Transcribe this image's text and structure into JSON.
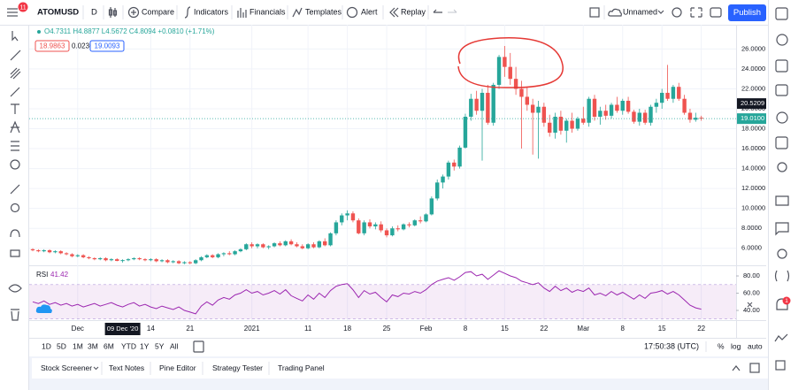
{
  "toolbar": {
    "symbol": "ATOMUSD",
    "interval": "D",
    "buttons": [
      "Compare",
      "Indicators",
      "Financials",
      "Templates",
      "Alert",
      "Replay"
    ],
    "layout_name": "Unnamed",
    "publish": "Publish",
    "notifications": "11"
  },
  "chart_data": {
    "type": "candlestick",
    "legend": "O4.7311 H4.8877 L4.5672 C4.8094 +0.0810 (+1.71%)",
    "bid": "18.9863",
    "spread": "0.0230",
    "ask": "19.0093",
    "colors": {
      "up": "#26a69a",
      "down": "#ef5350"
    },
    "candles": [
      [
        5.9,
        6.0,
        5.7,
        5.8
      ],
      [
        5.8,
        5.9,
        5.6,
        5.7
      ],
      [
        5.7,
        5.9,
        5.6,
        5.8
      ],
      [
        5.8,
        5.9,
        5.5,
        5.6
      ],
      [
        5.6,
        5.8,
        5.5,
        5.7
      ],
      [
        5.7,
        5.8,
        5.4,
        5.5
      ],
      [
        5.5,
        5.6,
        5.3,
        5.4
      ],
      [
        5.4,
        5.5,
        5.1,
        5.2
      ],
      [
        5.2,
        5.4,
        5.1,
        5.3
      ],
      [
        5.3,
        5.4,
        5.0,
        5.1
      ],
      [
        5.1,
        5.2,
        4.9,
        5.0
      ],
      [
        5.0,
        5.1,
        4.8,
        4.9
      ],
      [
        4.9,
        5.1,
        4.8,
        5.0
      ],
      [
        5.0,
        5.1,
        4.7,
        4.8
      ],
      [
        4.8,
        5.0,
        4.7,
        4.9
      ],
      [
        4.9,
        5.0,
        4.7,
        4.73
      ],
      [
        4.7311,
        4.8877,
        4.5672,
        4.8094
      ],
      [
        4.8,
        5.0,
        4.7,
        4.9
      ],
      [
        4.9,
        5.1,
        4.8,
        5.0
      ],
      [
        5.0,
        5.1,
        4.8,
        4.9
      ],
      [
        4.9,
        5.0,
        4.7,
        4.8
      ],
      [
        4.8,
        5.0,
        4.7,
        4.9
      ],
      [
        4.9,
        5.0,
        4.6,
        4.7
      ],
      [
        4.7,
        4.9,
        4.6,
        4.8
      ],
      [
        4.8,
        4.9,
        4.5,
        4.6
      ],
      [
        4.6,
        4.8,
        4.5,
        4.7
      ],
      [
        4.7,
        4.8,
        4.4,
        4.5
      ],
      [
        4.5,
        4.7,
        4.4,
        4.6
      ],
      [
        4.6,
        4.7,
        4.4,
        4.5
      ],
      [
        4.5,
        4.9,
        4.4,
        4.8
      ],
      [
        4.8,
        5.2,
        4.7,
        5.1
      ],
      [
        5.1,
        5.4,
        5.0,
        5.3
      ],
      [
        5.3,
        5.4,
        5.0,
        5.1
      ],
      [
        5.1,
        5.5,
        5.0,
        5.4
      ],
      [
        5.4,
        5.6,
        5.2,
        5.5
      ],
      [
        5.5,
        5.7,
        5.3,
        5.4
      ],
      [
        5.4,
        5.8,
        5.3,
        5.7
      ],
      [
        5.7,
        6.0,
        5.6,
        5.9
      ],
      [
        5.9,
        6.5,
        5.8,
        6.4
      ],
      [
        6.4,
        6.6,
        6.0,
        6.2
      ],
      [
        6.2,
        6.5,
        6.0,
        6.4
      ],
      [
        6.4,
        6.5,
        6.0,
        6.1
      ],
      [
        6.1,
        6.3,
        5.9,
        6.2
      ],
      [
        6.2,
        6.6,
        6.1,
        6.5
      ],
      [
        6.5,
        6.7,
        6.2,
        6.3
      ],
      [
        6.3,
        6.8,
        6.2,
        6.7
      ],
      [
        6.7,
        6.9,
        6.3,
        6.4
      ],
      [
        6.4,
        6.6,
        6.1,
        6.2
      ],
      [
        6.2,
        6.4,
        5.9,
        6.0
      ],
      [
        6.0,
        6.5,
        5.9,
        6.4
      ],
      [
        6.4,
        6.6,
        6.0,
        6.1
      ],
      [
        6.1,
        6.8,
        6.0,
        6.7
      ],
      [
        6.7,
        7.0,
        6.2,
        6.3
      ],
      [
        6.3,
        7.6,
        6.2,
        7.5
      ],
      [
        7.5,
        8.8,
        7.3,
        8.6
      ],
      [
        8.6,
        9.5,
        8.3,
        9.3
      ],
      [
        9.3,
        9.8,
        8.8,
        9.5
      ],
      [
        9.5,
        9.7,
        8.6,
        8.8
      ],
      [
        8.8,
        9.0,
        7.4,
        7.5
      ],
      [
        7.5,
        8.8,
        7.3,
        8.6
      ],
      [
        8.6,
        8.9,
        8.0,
        8.2
      ],
      [
        8.2,
        8.6,
        7.9,
        8.4
      ],
      [
        8.4,
        8.7,
        7.6,
        7.8
      ],
      [
        7.8,
        8.0,
        7.1,
        7.3
      ],
      [
        7.3,
        8.2,
        7.2,
        8.0
      ],
      [
        8.0,
        8.3,
        7.7,
        7.9
      ],
      [
        7.9,
        8.5,
        7.8,
        8.4
      ],
      [
        8.4,
        8.6,
        8.1,
        8.3
      ],
      [
        8.3,
        8.9,
        8.2,
        8.8
      ],
      [
        8.8,
        9.2,
        8.5,
        8.7
      ],
      [
        8.7,
        9.5,
        8.6,
        9.4
      ],
      [
        9.4,
        11.2,
        9.3,
        11.0
      ],
      [
        11.0,
        12.9,
        10.8,
        12.6
      ],
      [
        12.6,
        13.4,
        12.0,
        13.2
      ],
      [
        13.2,
        14.8,
        12.9,
        14.6
      ],
      [
        14.6,
        14.9,
        13.8,
        14.2
      ],
      [
        14.2,
        16.3,
        14.0,
        16.1
      ],
      [
        16.1,
        19.5,
        16.0,
        19.2
      ],
      [
        19.2,
        21.5,
        18.8,
        21.0
      ],
      [
        21.0,
        21.8,
        19.4,
        19.8
      ],
      [
        19.8,
        22.0,
        14.8,
        21.6
      ],
      [
        21.6,
        22.4,
        18.4,
        18.6
      ],
      [
        18.6,
        22.6,
        18.3,
        22.4
      ],
      [
        22.4,
        25.4,
        22.0,
        25.2
      ],
      [
        25.2,
        26.3,
        23.2,
        24.2
      ],
      [
        24.2,
        25.6,
        22.4,
        23.0
      ],
      [
        23.0,
        24.2,
        21.4,
        22.0
      ],
      [
        22.0,
        22.8,
        16.0,
        21.2
      ],
      [
        21.2,
        22.2,
        19.8,
        20.4
      ],
      [
        20.4,
        21.0,
        15.4,
        19.6
      ],
      [
        19.6,
        20.8,
        15.0,
        20.2
      ],
      [
        20.2,
        20.6,
        18.2,
        18.6
      ],
      [
        18.6,
        19.4,
        17.2,
        17.6
      ],
      [
        17.6,
        19.6,
        17.0,
        19.2
      ],
      [
        19.2,
        19.8,
        17.4,
        17.8
      ],
      [
        17.8,
        19.0,
        16.6,
        18.8
      ],
      [
        18.8,
        19.6,
        17.6,
        18.0
      ],
      [
        18.0,
        19.2,
        17.8,
        19.0
      ],
      [
        19.0,
        20.2,
        18.4,
        18.6
      ],
      [
        18.6,
        21.2,
        18.2,
        21.0
      ],
      [
        21.0,
        21.4,
        18.8,
        19.2
      ],
      [
        19.2,
        20.2,
        18.4,
        19.8
      ],
      [
        19.8,
        20.4,
        18.9,
        19.3
      ],
      [
        19.3,
        20.6,
        19.0,
        20.4
      ],
      [
        20.4,
        21.2,
        19.6,
        19.8
      ],
      [
        19.8,
        21.0,
        19.4,
        20.8
      ],
      [
        20.8,
        21.2,
        19.5,
        19.7
      ],
      [
        19.7,
        19.9,
        18.5,
        18.7
      ],
      [
        18.7,
        20.0,
        18.3,
        19.6
      ],
      [
        19.6,
        19.9,
        18.4,
        18.6
      ],
      [
        18.6,
        20.4,
        18.3,
        20.2
      ],
      [
        20.2,
        21.0,
        19.6,
        20.6
      ],
      [
        20.6,
        22.0,
        20.0,
        21.6
      ],
      [
        21.6,
        24.4,
        20.8,
        21.0
      ],
      [
        21.0,
        22.4,
        20.6,
        22.2
      ],
      [
        22.2,
        22.6,
        20.8,
        21.0
      ],
      [
        21.0,
        21.4,
        19.4,
        19.6
      ],
      [
        19.6,
        20.0,
        18.6,
        18.9
      ],
      [
        18.9,
        19.6,
        18.7,
        19.1
      ],
      [
        19.1,
        19.3,
        18.8,
        19.01
      ]
    ],
    "ylim": [
      4.29,
      28.43
    ],
    "yticks": [
      {
        "value": 26,
        "label": "26.0000"
      },
      {
        "value": 24,
        "label": "24.0000"
      },
      {
        "value": 22,
        "label": "22.0000"
      },
      {
        "value": 20,
        "label": "20.0000"
      },
      {
        "value": 18,
        "label": "18.0000"
      },
      {
        "value": 16,
        "label": "16.0000"
      },
      {
        "value": 14,
        "label": "14.0000"
      },
      {
        "value": 12,
        "label": "12.0000"
      },
      {
        "value": 10,
        "label": "10.0000"
      },
      {
        "value": 8,
        "label": "8.0000"
      },
      {
        "value": 6,
        "label": "6.0000"
      }
    ],
    "xticks": [
      {
        "value": 8,
        "label": "Dec"
      },
      {
        "value": 21,
        "label": "14"
      },
      {
        "value": 28,
        "label": "21"
      },
      {
        "value": 39,
        "label": "2021"
      },
      {
        "value": 49,
        "label": "11"
      },
      {
        "value": 56,
        "label": "18"
      },
      {
        "value": 63,
        "label": "25"
      },
      {
        "value": 70,
        "label": "Feb"
      },
      {
        "value": 77,
        "label": "8"
      },
      {
        "value": 84,
        "label": "15"
      },
      {
        "value": 91,
        "label": "22"
      },
      {
        "value": 98,
        "label": "Mar"
      },
      {
        "value": 105,
        "label": "8"
      },
      {
        "value": 112,
        "label": "15"
      },
      {
        "value": 119,
        "label": "22"
      }
    ],
    "crosshair": {
      "value": 16,
      "label": "09 Dec '20"
    },
    "price_labels": [
      {
        "value": 20.5209,
        "label": "20.5209"
      },
      {
        "value": 19.01,
        "label": "19.0100"
      }
    ],
    "rsi": {
      "name": "RSI",
      "current": 41.42,
      "color": "#9c27b0",
      "band": [
        30,
        70
      ],
      "ylim": [
        28.7,
        90.3
      ],
      "yticks": [
        {
          "value": 80,
          "label": "80.00"
        },
        {
          "value": 60,
          "label": "60.00"
        },
        {
          "value": 40,
          "label": "40.00"
        }
      ],
      "values": [
        50,
        48,
        51,
        47,
        49,
        46,
        48,
        45,
        47,
        44,
        46,
        48,
        45,
        47,
        49,
        46,
        44,
        47,
        49,
        45,
        47,
        44,
        42,
        45,
        43,
        41,
        44,
        40,
        38,
        36,
        45,
        50,
        46,
        52,
        55,
        53,
        58,
        60,
        64,
        60,
        62,
        58,
        60,
        63,
        59,
        64,
        57,
        54,
        51,
        58,
        53,
        60,
        55,
        63,
        68,
        70,
        71,
        64,
        55,
        63,
        59,
        61,
        55,
        50,
        58,
        56,
        60,
        59,
        62,
        60,
        64,
        70,
        74,
        76,
        78,
        75,
        79,
        84,
        85,
        80,
        82,
        76,
        81,
        86,
        83,
        80,
        78,
        74,
        72,
        70,
        72,
        66,
        62,
        68,
        63,
        66,
        61,
        64,
        62,
        66,
        58,
        60,
        57,
        62,
        58,
        61,
        57,
        53,
        58,
        54,
        60,
        61,
        63,
        59,
        62,
        58,
        52,
        46,
        43,
        41.42
      ]
    }
  },
  "range_bar": {
    "ranges": [
      "1D",
      "5D",
      "1M",
      "3M",
      "6M",
      "YTD",
      "1Y",
      "5Y",
      "All"
    ],
    "clock": "17:50:38 (UTC)",
    "options": [
      "%",
      "log",
      "auto"
    ]
  },
  "bottom_panel": {
    "tabs": [
      "Stock Screener",
      "Text Notes",
      "Pine Editor",
      "Strategy Tester",
      "Trading Panel"
    ]
  },
  "sidebar_badge": "1"
}
